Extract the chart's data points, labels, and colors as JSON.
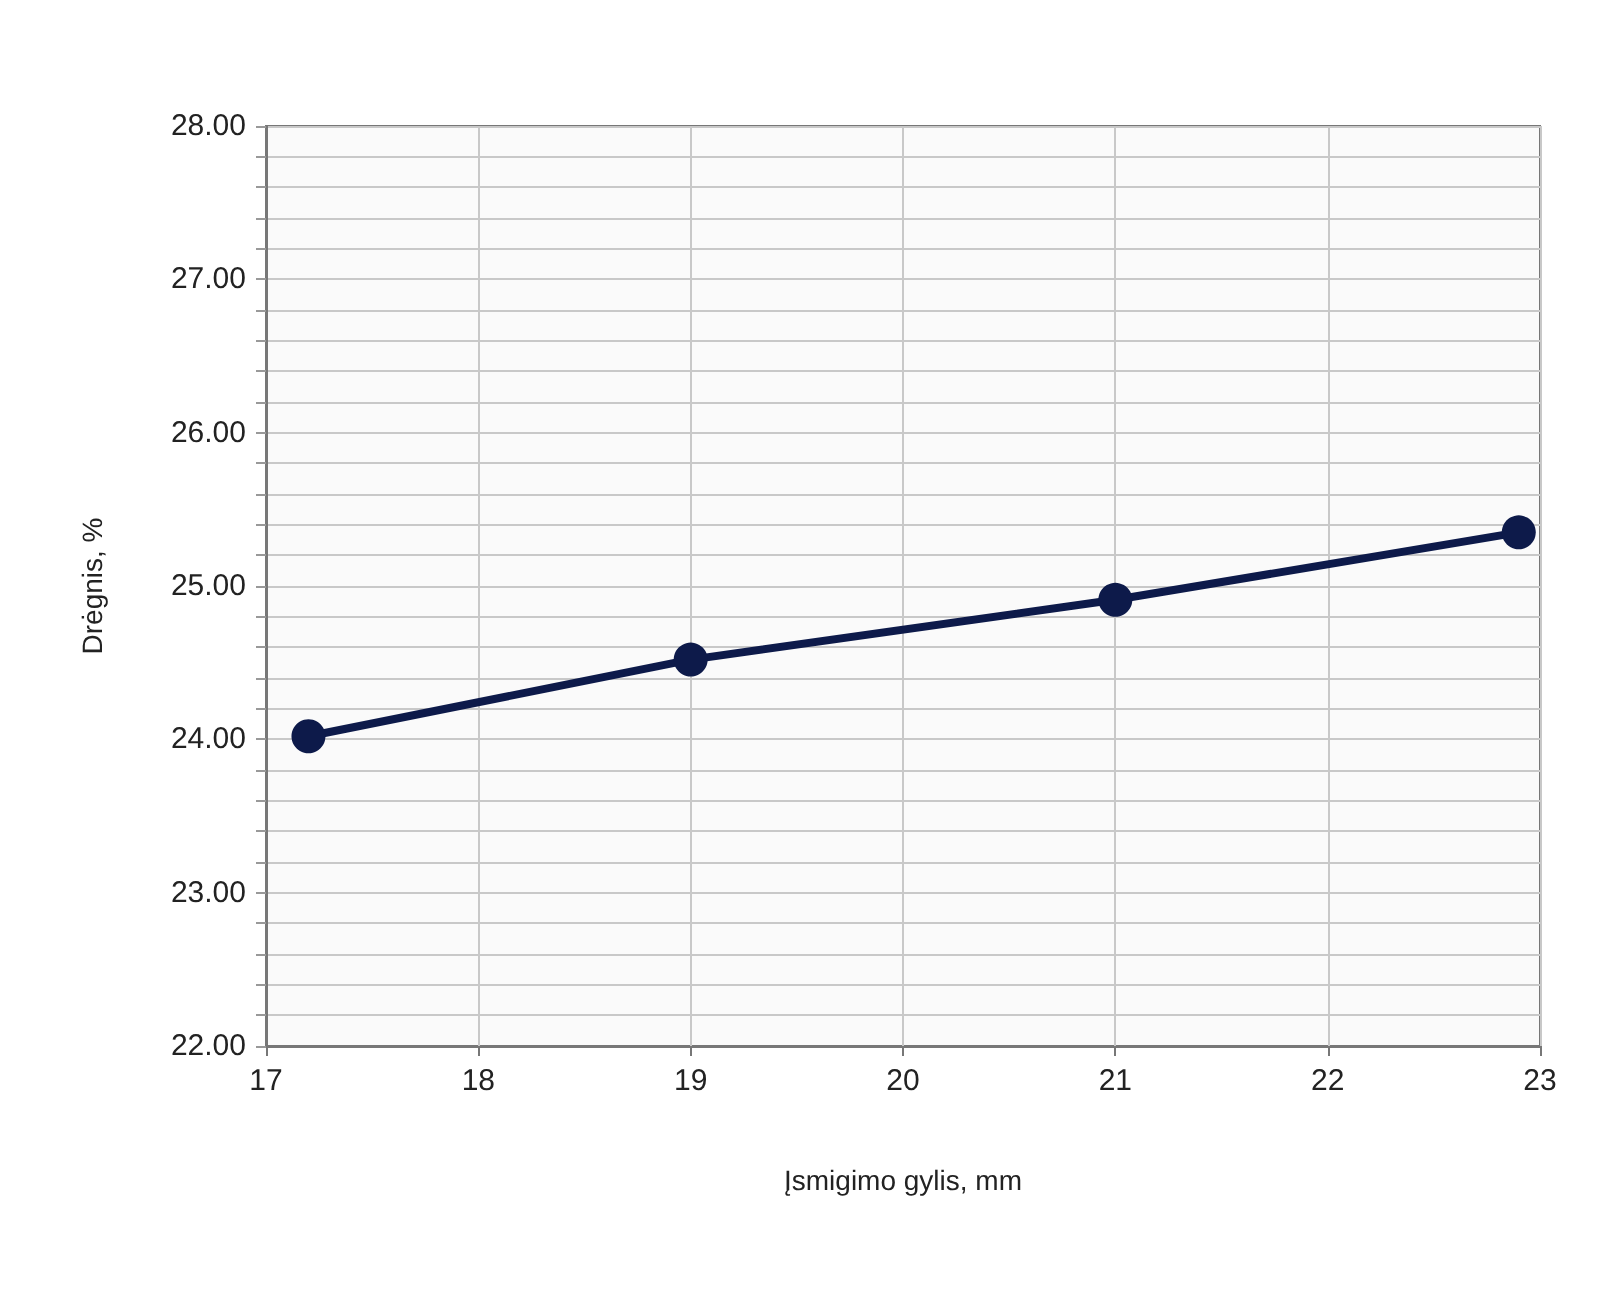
{
  "chart_data": {
    "type": "line",
    "xlabel": "Įsmigimo gylis, mm",
    "ylabel": "Drėgnis, %",
    "x": [
      17.2,
      19,
      21,
      22.9
    ],
    "series": [
      {
        "color": "#0d1a4a",
        "values": [
          24.02,
          24.52,
          24.91,
          25.35
        ]
      }
    ],
    "marker": "circle",
    "xlim": [
      17,
      23
    ],
    "xticks": [
      17,
      18,
      19,
      20,
      21,
      22,
      23
    ],
    "ylim": [
      22,
      28
    ],
    "yticks": [
      {
        "value": 22,
        "label": "22.00"
      },
      {
        "value": 22.2,
        "label": null
      },
      {
        "value": 22.4,
        "label": null
      },
      {
        "value": 22.6,
        "label": null
      },
      {
        "value": 22.8,
        "label": null
      },
      {
        "value": 23,
        "label": "23.00"
      },
      {
        "value": 23.2,
        "label": null
      },
      {
        "value": 23.4,
        "label": null
      },
      {
        "value": 23.6,
        "label": null
      },
      {
        "value": 23.8,
        "label": null
      },
      {
        "value": 24,
        "label": "24.00"
      },
      {
        "value": 24.2,
        "label": null
      },
      {
        "value": 24.4,
        "label": null
      },
      {
        "value": 24.6,
        "label": null
      },
      {
        "value": 24.8,
        "label": null
      },
      {
        "value": 25,
        "label": "25.00"
      },
      {
        "value": 25.2,
        "label": null
      },
      {
        "value": 25.4,
        "label": null
      },
      {
        "value": 25.6,
        "label": null
      },
      {
        "value": 25.8,
        "label": null
      },
      {
        "value": 26,
        "label": "26.00"
      },
      {
        "value": 26.2,
        "label": null
      },
      {
        "value": 26.4,
        "label": null
      },
      {
        "value": 26.6,
        "label": null
      },
      {
        "value": 26.8,
        "label": null
      },
      {
        "value": 27,
        "label": "27.00"
      },
      {
        "value": 27.2,
        "label": null
      },
      {
        "value": 27.4,
        "label": null
      },
      {
        "value": 27.6,
        "label": null
      },
      {
        "value": 27.8,
        "label": null
      },
      {
        "value": 28,
        "label": "28.00"
      }
    ],
    "grid": true
  }
}
